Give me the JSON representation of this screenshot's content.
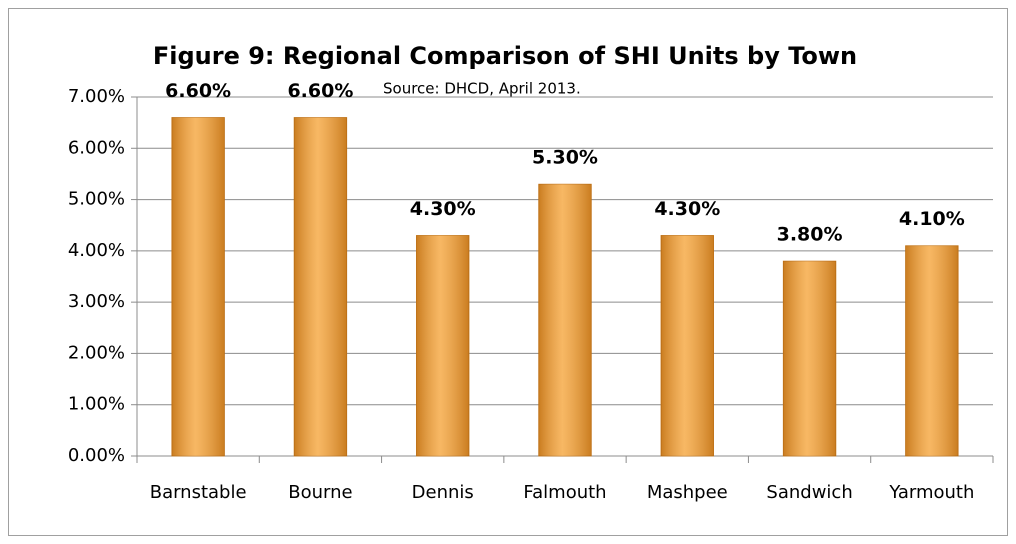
{
  "chart_data": {
    "type": "bar",
    "title": "Figure 9:  Regional Comparison of SHI Units by Town",
    "subtitle": "Source:  DHCD, April 2013.",
    "categories": [
      "Barnstable",
      "Bourne",
      "Dennis",
      "Falmouth",
      "Mashpee",
      "Sandwich",
      "Yarmouth"
    ],
    "values": [
      6.6,
      6.6,
      4.3,
      5.3,
      4.3,
      3.8,
      4.1
    ],
    "value_labels": [
      "6.60%",
      "6.60%",
      "4.30%",
      "5.30%",
      "4.30%",
      "3.80%",
      "4.10%"
    ],
    "color": "#f5a030",
    "ylim": [
      0,
      7
    ],
    "yticks": [
      {
        "value": 0,
        "label": "0.00%"
      },
      {
        "value": 1,
        "label": "1.00%"
      },
      {
        "value": 2,
        "label": "2.00%"
      },
      {
        "value": 3,
        "label": "3.00%"
      },
      {
        "value": 4,
        "label": "4.00%"
      },
      {
        "value": 5,
        "label": "5.00%"
      },
      {
        "value": 6,
        "label": "6.00%"
      },
      {
        "value": 7,
        "label": "7.00%"
      }
    ],
    "grid": true
  }
}
